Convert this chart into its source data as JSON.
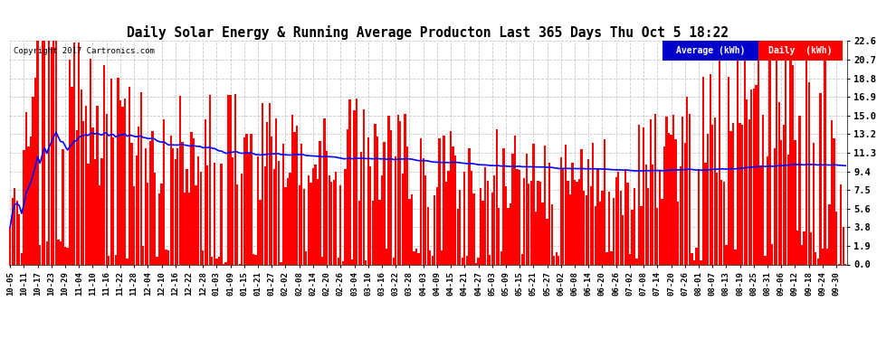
{
  "title": "Daily Solar Energy & Running Average Producton Last 365 Days Thu Oct 5 18:22",
  "copyright_text": "Copyright 2017 Cartronics.com",
  "yticks": [
    0.0,
    1.9,
    3.8,
    5.6,
    7.5,
    9.4,
    11.3,
    13.2,
    15.0,
    16.9,
    18.8,
    20.7,
    22.6
  ],
  "ymax": 22.6,
  "ymin": 0.0,
  "bar_color": "#FF0000",
  "avg_line_color": "#0000FF",
  "background_color": "#FFFFFF",
  "grid_color": "#BBBBBB",
  "legend_avg_color": "#0000CC",
  "legend_daily_color": "#FF0000",
  "n_days": 365,
  "x_tick_labels": [
    "10-05",
    "10-11",
    "10-17",
    "10-23",
    "10-29",
    "11-04",
    "11-10",
    "11-16",
    "11-22",
    "11-28",
    "12-04",
    "12-10",
    "12-16",
    "12-22",
    "12-28",
    "01-03",
    "01-09",
    "01-15",
    "01-21",
    "01-27",
    "02-02",
    "02-08",
    "02-14",
    "02-20",
    "02-26",
    "03-04",
    "03-10",
    "03-16",
    "03-22",
    "03-28",
    "04-03",
    "04-09",
    "04-15",
    "04-21",
    "04-27",
    "05-03",
    "05-09",
    "05-15",
    "05-21",
    "05-27",
    "06-02",
    "06-08",
    "06-14",
    "06-20",
    "06-26",
    "07-02",
    "07-08",
    "07-14",
    "07-20",
    "07-26",
    "08-01",
    "08-07",
    "08-13",
    "08-19",
    "08-25",
    "08-31",
    "09-06",
    "09-12",
    "09-18",
    "09-24",
    "09-30"
  ]
}
